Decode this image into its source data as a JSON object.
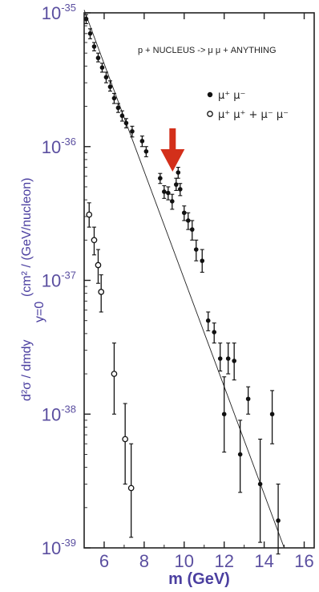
{
  "chart_data": {
    "type": "scatter",
    "title": "",
    "xlabel": "m (GeV)",
    "ylabel_fraction": "d²σ / dmdy",
    "ylabel_sub": "y=0",
    "ylabel_units": "(cm² / (GeV/nucleon)",
    "x_scale": "linear",
    "y_scale": "log",
    "xlim": [
      5,
      16.5
    ],
    "ylim_exponent": [
      -39,
      -35
    ],
    "x_ticks": [
      6,
      8,
      10,
      12,
      14,
      16
    ],
    "y_ticks": [
      {
        "base": "10",
        "exp": "-35",
        "value": 1e-35
      },
      {
        "base": "10",
        "exp": "-36",
        "value": 1e-36
      },
      {
        "base": "10",
        "exp": "-37",
        "value": 1e-37
      },
      {
        "base": "10",
        "exp": "-38",
        "value": 1e-38
      },
      {
        "base": "10",
        "exp": "-39",
        "value": 1e-39
      }
    ],
    "annotation": "p + NUCLEUS ->  μ μ + ANYTHING",
    "legend_position": "top-right",
    "arrow_color": "#d32f1a",
    "arrow_at_x": 9.5,
    "series": [
      {
        "name": "μ⁺ μ⁻",
        "marker": "filled-circle",
        "points": [
          {
            "x": 5.1,
            "y": 9e-36,
            "lo": 8.3e-36,
            "hi": 9.7e-36
          },
          {
            "x": 5.3,
            "y": 7e-36,
            "lo": 6.4e-36,
            "hi": 7.6e-36
          },
          {
            "x": 5.5,
            "y": 5.6e-36,
            "lo": 5.2e-36,
            "hi": 6e-36
          },
          {
            "x": 5.7,
            "y": 4.6e-36,
            "lo": 4.3e-36,
            "hi": 5e-36
          },
          {
            "x": 5.9,
            "y": 3.9e-36,
            "lo": 3.6e-36,
            "hi": 4.2e-36
          },
          {
            "x": 6.1,
            "y": 3.3e-36,
            "lo": 3e-36,
            "hi": 3.6e-36
          },
          {
            "x": 6.3,
            "y": 2.8e-36,
            "lo": 2.6e-36,
            "hi": 3.1e-36
          },
          {
            "x": 6.5,
            "y": 2.3e-36,
            "lo": 2.1e-36,
            "hi": 2.5e-36
          },
          {
            "x": 6.7,
            "y": 1.95e-36,
            "lo": 1.8e-36,
            "hi": 2.1e-36
          },
          {
            "x": 6.9,
            "y": 1.7e-36,
            "lo": 1.55e-36,
            "hi": 1.85e-36
          },
          {
            "x": 7.1,
            "y": 1.5e-36,
            "lo": 1.38e-36,
            "hi": 1.62e-36
          },
          {
            "x": 7.4,
            "y": 1.3e-36,
            "lo": 1.18e-36,
            "hi": 1.42e-36
          },
          {
            "x": 7.9,
            "y": 1.1e-36,
            "lo": 1e-36,
            "hi": 1.2e-36
          },
          {
            "x": 8.1,
            "y": 9.2e-37,
            "lo": 8.4e-37,
            "hi": 1e-36
          },
          {
            "x": 8.8,
            "y": 5.8e-37,
            "lo": 5.3e-37,
            "hi": 6.3e-37
          },
          {
            "x": 9.0,
            "y": 4.6e-37,
            "lo": 4.1e-37,
            "hi": 5.1e-37
          },
          {
            "x": 9.2,
            "y": 4.5e-37,
            "lo": 4e-37,
            "hi": 5e-37
          },
          {
            "x": 9.4,
            "y": 3.9e-37,
            "lo": 3.4e-37,
            "hi": 4.4e-37
          },
          {
            "x": 9.6,
            "y": 5.2e-37,
            "lo": 4.7e-37,
            "hi": 5.8e-37
          },
          {
            "x": 9.7,
            "y": 6.4e-37,
            "lo": 5.8e-37,
            "hi": 7e-37
          },
          {
            "x": 9.8,
            "y": 4.8e-37,
            "lo": 4.3e-37,
            "hi": 5.3e-37
          },
          {
            "x": 10.0,
            "y": 3.2e-37,
            "lo": 2.8e-37,
            "hi": 3.6e-37
          },
          {
            "x": 10.2,
            "y": 2.8e-37,
            "lo": 2.4e-37,
            "hi": 3.2e-37
          },
          {
            "x": 10.4,
            "y": 2.4e-37,
            "lo": 2e-37,
            "hi": 2.8e-37
          },
          {
            "x": 10.6,
            "y": 1.7e-37,
            "lo": 1.4e-37,
            "hi": 2e-37
          },
          {
            "x": 10.9,
            "y": 1.4e-37,
            "lo": 1.15e-37,
            "hi": 1.7e-37
          },
          {
            "x": 11.2,
            "y": 5e-38,
            "lo": 4.2e-38,
            "hi": 5.8e-38
          },
          {
            "x": 11.5,
            "y": 4.1e-38,
            "lo": 3.4e-38,
            "hi": 4.8e-38
          },
          {
            "x": 11.8,
            "y": 2.6e-38,
            "lo": 2.1e-38,
            "hi": 3.4e-38
          },
          {
            "x": 12.2,
            "y": 2.6e-38,
            "lo": 2e-38,
            "hi": 3.4e-38
          },
          {
            "x": 12.5,
            "y": 2.5e-38,
            "lo": 1.8e-38,
            "hi": 3.4e-38
          },
          {
            "x": 12.0,
            "y": 1e-38,
            "lo": 5.2e-39,
            "hi": 1.9e-38
          },
          {
            "x": 12.8,
            "y": 5e-39,
            "lo": 2.6e-39,
            "hi": 9e-39
          },
          {
            "x": 13.2,
            "y": 1.3e-38,
            "lo": 1e-38,
            "hi": 1.6e-38
          },
          {
            "x": 13.8,
            "y": 3e-39,
            "lo": 1.1e-39,
            "hi": 6.5e-39
          },
          {
            "x": 14.4,
            "y": 1e-38,
            "lo": 6e-39,
            "hi": 1.5e-38
          },
          {
            "x": 14.7,
            "y": 1.6e-39,
            "lo": 9e-40,
            "hi": 3e-39
          }
        ]
      },
      {
        "name": "μ⁺ μ⁺ + μ⁻ μ⁻",
        "marker": "open-circle",
        "points": [
          {
            "x": 5.25,
            "y": 3.1e-37,
            "lo": 2.5e-37,
            "hi": 3.8e-37
          },
          {
            "x": 5.5,
            "y": 2e-37,
            "lo": 1.55e-37,
            "hi": 2.5e-37
          },
          {
            "x": 5.7,
            "y": 1.3e-37,
            "lo": 9.5e-38,
            "hi": 1.7e-37
          },
          {
            "x": 5.85,
            "y": 8.2e-38,
            "lo": 5.8e-38,
            "hi": 1.1e-37
          },
          {
            "x": 6.5,
            "y": 2e-38,
            "lo": 1e-38,
            "hi": 3.4e-38
          },
          {
            "x": 7.05,
            "y": 6.5e-39,
            "lo": 3e-39,
            "hi": 1.2e-38
          },
          {
            "x": 7.35,
            "y": 2.8e-39,
            "lo": 1.2e-39,
            "hi": 6e-39
          }
        ]
      }
    ],
    "fit_line": {
      "x": [
        5.0,
        15.0
      ],
      "y": [
        1.05e-35,
        1e-39
      ]
    }
  }
}
